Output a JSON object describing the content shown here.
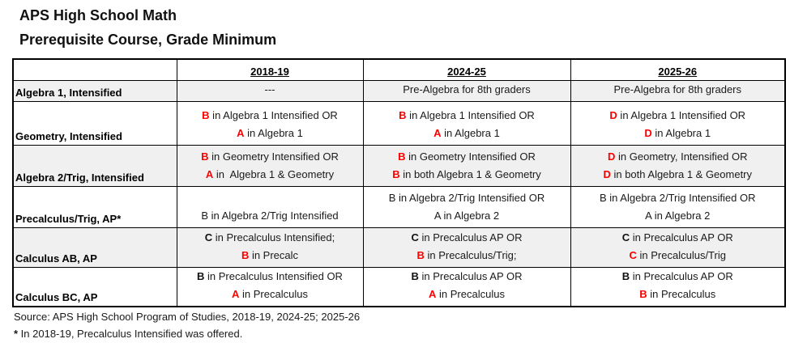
{
  "page": {
    "title_line1": "APS High School Math",
    "title_line2": "Prerequisite Course, Grade Minimum"
  },
  "colors": {
    "grade_red": "#ff0000",
    "row_shade": "#f0f0f0",
    "border": "#000000"
  },
  "table": {
    "header_labels": [
      "",
      "2018-19",
      "2024-25",
      "2025-26"
    ],
    "rows": [
      {
        "label": "Algebra 1, Intensified",
        "cells": [
          {
            "lines": [
              [
                {
                  "t": "---",
                  "s": "n"
                }
              ]
            ]
          },
          {
            "lines": [
              [
                {
                  "t": "Pre-Algebra for 8th graders",
                  "s": "n"
                }
              ]
            ]
          },
          {
            "lines": [
              [
                {
                  "t": "Pre-Algebra for 8th graders",
                  "s": "n"
                }
              ]
            ]
          }
        ]
      },
      {
        "label": "Geometry, Intensified",
        "cells": [
          {
            "lines": [
              [
                {
                  "t": "B",
                  "s": "rb"
                },
                {
                  "t": " in Algebra 1 Intensified OR",
                  "s": "n"
                }
              ],
              [
                {
                  "t": "A",
                  "s": "rb"
                },
                {
                  "t": " in Algebra 1",
                  "s": "n"
                }
              ]
            ]
          },
          {
            "lines": [
              [
                {
                  "t": "B",
                  "s": "rb"
                },
                {
                  "t": " in Algebra 1 Intensified OR",
                  "s": "n"
                }
              ],
              [
                {
                  "t": "A",
                  "s": "rb"
                },
                {
                  "t": " in Algebra 1",
                  "s": "n"
                }
              ]
            ]
          },
          {
            "lines": [
              [
                {
                  "t": "D",
                  "s": "rb"
                },
                {
                  "t": " in Algebra 1 Intensified OR",
                  "s": "n"
                }
              ],
              [
                {
                  "t": "D",
                  "s": "rb"
                },
                {
                  "t": " in Algebra 1",
                  "s": "n"
                }
              ]
            ]
          }
        ]
      },
      {
        "label": "Algebra 2/Trig, Intensified",
        "cells": [
          {
            "lines": [
              [
                {
                  "t": "B",
                  "s": "rb"
                },
                {
                  "t": " in Geometry Intensified OR",
                  "s": "n"
                }
              ],
              [
                {
                  "t": "A",
                  "s": "rb"
                },
                {
                  "t": " in  Algebra 1 & Geometry",
                  "s": "n"
                }
              ]
            ]
          },
          {
            "lines": [
              [
                {
                  "t": "B",
                  "s": "rb"
                },
                {
                  "t": " in Geometry Intensified OR",
                  "s": "n"
                }
              ],
              [
                {
                  "t": "B",
                  "s": "rb"
                },
                {
                  "t": " in both Algebra 1 & Geometry",
                  "s": "n"
                }
              ]
            ]
          },
          {
            "lines": [
              [
                {
                  "t": "D",
                  "s": "rb"
                },
                {
                  "t": " in Geometry, Intensified OR",
                  "s": "n"
                }
              ],
              [
                {
                  "t": "D",
                  "s": "rb"
                },
                {
                  "t": " in both Algebra 1 & Geometry",
                  "s": "n"
                }
              ]
            ]
          }
        ]
      },
      {
        "label": "Precalculus/Trig, AP*",
        "cells": [
          {
            "lines": [
              [
                {
                  "t": "B in Algebra 2/Trig Intensified",
                  "s": "n"
                }
              ]
            ]
          },
          {
            "lines": [
              [
                {
                  "t": "B in Algebra 2/Trig Intensified OR",
                  "s": "n"
                }
              ],
              [
                {
                  "t": "A in Algebra 2",
                  "s": "n"
                }
              ]
            ]
          },
          {
            "lines": [
              [
                {
                  "t": "B in Algebra 2/Trig Intensified OR",
                  "s": "n"
                }
              ],
              [
                {
                  "t": "A in Algebra 2",
                  "s": "n"
                }
              ]
            ]
          }
        ]
      },
      {
        "label": "Calculus AB, AP",
        "cells": [
          {
            "lines": [
              [
                {
                  "t": "C",
                  "s": "kb"
                },
                {
                  "t": " in Precalculus Intensified;",
                  "s": "n"
                }
              ],
              [
                {
                  "t": "B",
                  "s": "rb"
                },
                {
                  "t": " in Precalc",
                  "s": "n"
                }
              ]
            ]
          },
          {
            "lines": [
              [
                {
                  "t": "C",
                  "s": "kb"
                },
                {
                  "t": " in Precalculus AP OR",
                  "s": "n"
                }
              ],
              [
                {
                  "t": "B",
                  "s": "rb"
                },
                {
                  "t": " in Precalculus/Trig;",
                  "s": "n"
                }
              ]
            ]
          },
          {
            "lines": [
              [
                {
                  "t": "C",
                  "s": "kb"
                },
                {
                  "t": " in Precalculus AP OR",
                  "s": "n"
                }
              ],
              [
                {
                  "t": "C",
                  "s": "rb"
                },
                {
                  "t": " in Precalculus/Trig",
                  "s": "n"
                }
              ]
            ]
          }
        ]
      },
      {
        "label": "Calculus BC, AP",
        "cells": [
          {
            "lines": [
              [
                {
                  "t": "B",
                  "s": "kb"
                },
                {
                  "t": " in Precalculus Intensified OR",
                  "s": "n"
                }
              ],
              [
                {
                  "t": "A",
                  "s": "rb"
                },
                {
                  "t": " in Precalculus",
                  "s": "n"
                }
              ]
            ]
          },
          {
            "lines": [
              [
                {
                  "t": "B",
                  "s": "kb"
                },
                {
                  "t": " in Precalculus AP OR",
                  "s": "n"
                }
              ],
              [
                {
                  "t": "A",
                  "s": "rb"
                },
                {
                  "t": " in Precalculus",
                  "s": "n"
                }
              ]
            ]
          },
          {
            "lines": [
              [
                {
                  "t": "B",
                  "s": "kb"
                },
                {
                  "t": " in Precalculus AP OR",
                  "s": "n"
                }
              ],
              [
                {
                  "t": "B",
                  "s": "rb"
                },
                {
                  "t": " in Precalculus",
                  "s": "n"
                }
              ]
            ]
          }
        ]
      }
    ]
  },
  "footer": {
    "source": "Source: APS High School Program of Studies, 2018-19, 2024-25; 2025-26",
    "footnote_marker": "*",
    "footnote_text": " In 2018-19, Precalculus Intensified was offered."
  }
}
